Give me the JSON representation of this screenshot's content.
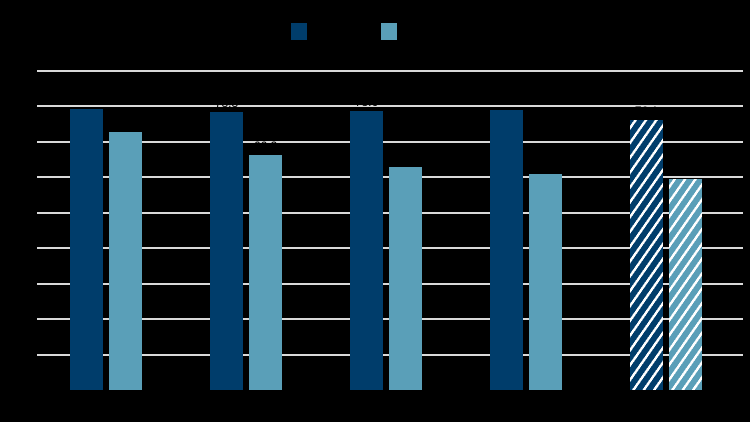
{
  "chart_data": {
    "type": "bar",
    "title": "",
    "xlabel": "",
    "ylabel": "",
    "ylim": [
      0,
      90
    ],
    "grid": true,
    "legend_position": "top",
    "categories": [
      "",
      "",
      "",
      "",
      ""
    ],
    "series": [
      {
        "name": "",
        "color": "#003d6b",
        "values": [
          79.4,
          78.3,
          78.6,
          78.9,
          76.1
        ]
      },
      {
        "name": "",
        "color": "#5a9fb8",
        "values": [
          72.7,
          66.2,
          62.8,
          60.8,
          59.4
        ]
      }
    ],
    "hatched_categories": [
      4
    ],
    "annotations": "Data labels above bars are rendered in black on black background and are not legible"
  },
  "legend": {
    "items": [
      {
        "label": "",
        "color": "#003d6b"
      },
      {
        "label": "",
        "color": "#5a9fb8"
      }
    ]
  },
  "colors": {
    "background": "#000000",
    "gridline": "#d9d9d9",
    "series_dark": "#003d6b",
    "series_light": "#5a9fb8"
  }
}
